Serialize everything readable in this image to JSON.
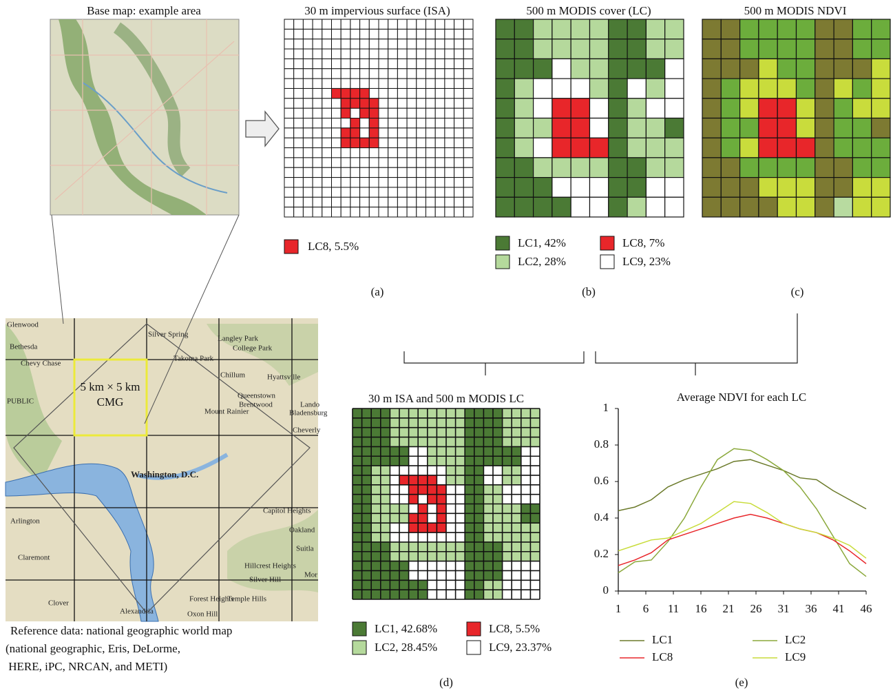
{
  "base_map": {
    "title": "Base map: example area"
  },
  "panel_a": {
    "title": "30 m impervious surface (ISA)",
    "cells": [
      [
        7,
        5
      ],
      [
        7,
        6
      ],
      [
        7,
        7
      ],
      [
        7,
        8
      ],
      [
        8,
        6
      ],
      [
        8,
        7
      ],
      [
        8,
        8
      ],
      [
        8,
        9
      ],
      [
        9,
        6
      ],
      [
        9,
        8
      ],
      [
        9,
        9
      ],
      [
        10,
        7
      ],
      [
        10,
        9
      ],
      [
        11,
        6
      ],
      [
        11,
        7
      ],
      [
        11,
        9
      ],
      [
        12,
        6
      ],
      [
        12,
        7
      ],
      [
        12,
        8
      ],
      [
        12,
        9
      ]
    ],
    "legend": [
      {
        "label": "LC8, 5.5%",
        "color": "#e8262a"
      }
    ]
  },
  "panel_b": {
    "title": "500 m MODIS cover (LC)",
    "grid": [
      [
        0,
        0,
        1,
        1,
        1,
        1,
        0,
        0,
        1,
        1
      ],
      [
        0,
        0,
        1,
        1,
        1,
        1,
        0,
        0,
        1,
        1
      ],
      [
        0,
        0,
        0,
        3,
        1,
        1,
        0,
        0,
        0,
        3
      ],
      [
        0,
        1,
        3,
        3,
        3,
        1,
        0,
        3,
        1,
        3
      ],
      [
        0,
        1,
        3,
        2,
        2,
        3,
        0,
        1,
        3,
        3
      ],
      [
        0,
        1,
        1,
        2,
        2,
        3,
        0,
        1,
        1,
        0
      ],
      [
        0,
        1,
        3,
        2,
        2,
        2,
        0,
        1,
        1,
        1
      ],
      [
        0,
        0,
        1,
        1,
        1,
        1,
        0,
        0,
        1,
        1
      ],
      [
        0,
        0,
        0,
        3,
        3,
        3,
        0,
        0,
        3,
        3
      ],
      [
        0,
        0,
        0,
        0,
        3,
        3,
        0,
        1,
        3,
        3
      ]
    ],
    "legend": [
      {
        "label": "LC1, 42%",
        "color": "#4b7a35"
      },
      {
        "label": "LC2, 28%",
        "color": "#b5d99c"
      },
      {
        "label": "LC8, 7%",
        "color": "#e8262a"
      },
      {
        "label": "LC9, 23%",
        "color": "#ffffff"
      }
    ]
  },
  "panel_c": {
    "title": "500 m MODIS NDVI",
    "palette": [
      "#7d7a32",
      "#6cad3c",
      "#c9dc3c",
      "#e8262a",
      "#b8dba0"
    ],
    "grid": [
      [
        0,
        0,
        1,
        1,
        1,
        1,
        0,
        0,
        1,
        1
      ],
      [
        0,
        0,
        1,
        1,
        1,
        1,
        0,
        0,
        1,
        1
      ],
      [
        0,
        0,
        0,
        2,
        1,
        1,
        0,
        0,
        0,
        2
      ],
      [
        0,
        1,
        2,
        2,
        2,
        1,
        0,
        2,
        1,
        2
      ],
      [
        0,
        1,
        2,
        3,
        3,
        2,
        0,
        1,
        2,
        2
      ],
      [
        0,
        1,
        1,
        3,
        3,
        2,
        0,
        1,
        1,
        0
      ],
      [
        0,
        1,
        2,
        3,
        3,
        3,
        0,
        1,
        1,
        1
      ],
      [
        0,
        0,
        1,
        1,
        1,
        1,
        0,
        0,
        1,
        1
      ],
      [
        0,
        0,
        0,
        2,
        2,
        2,
        0,
        0,
        2,
        2
      ],
      [
        0,
        0,
        0,
        0,
        2,
        2,
        0,
        4,
        2,
        2
      ]
    ]
  },
  "panel_d": {
    "title": "30 m ISA and 500 m MODIS LC",
    "legend": [
      {
        "label": "LC1, 42.68%",
        "color": "#4b7a35"
      },
      {
        "label": "LC2, 28.45%",
        "color": "#b5d99c"
      },
      {
        "label": "LC8, 5.5%",
        "color": "#e8262a"
      },
      {
        "label": "LC9, 23.37%",
        "color": "#ffffff"
      }
    ]
  },
  "panel_labels": [
    "(a)",
    "(b)",
    "(c)",
    "(d)",
    "(e)"
  ],
  "map": {
    "box_label": [
      "5 km × 5 km",
      "CMG"
    ],
    "place_names": [
      "Glenwood",
      "Bethesda",
      "Chevy Chase",
      "Silver Spring",
      "Langley Park",
      "College Park",
      "Takoma Park",
      "Chillum",
      "Hyattsville",
      "Queenstown",
      "Brentwood",
      "Mount Rainier",
      "Lando",
      "Bladensburg",
      "Cheverly",
      "Washington, D.C.",
      "Arlington",
      "Capitol Heights",
      "Claremont",
      "Oakland",
      "Suitla",
      "Hillcrest Heights",
      "Silver Hill",
      "Forest Heights",
      "Temple Hills",
      "Clover",
      "Alexandria",
      "Oxon Hill",
      "PUBLIC",
      "Mor"
    ],
    "caption": [
      "Reference data: national geographic world map",
      "(national geographic, Eris, DeLorme,",
      " HERE, iPC, NRCAN, and METI)"
    ]
  },
  "chart_data": {
    "type": "line",
    "title": "Average NDVI for each LC",
    "x": [
      1,
      4,
      7,
      10,
      13,
      16,
      19,
      22,
      25,
      28,
      31,
      34,
      37,
      40,
      43,
      46
    ],
    "series": [
      {
        "name": "LC1",
        "color": "#6b7a2a",
        "values": [
          0.44,
          0.46,
          0.5,
          0.57,
          0.61,
          0.64,
          0.67,
          0.71,
          0.72,
          0.69,
          0.66,
          0.62,
          0.61,
          0.55,
          0.5,
          0.45
        ]
      },
      {
        "name": "LC2",
        "color": "#8aa83a",
        "values": [
          0.1,
          0.16,
          0.17,
          0.27,
          0.4,
          0.57,
          0.72,
          0.78,
          0.77,
          0.72,
          0.66,
          0.57,
          0.45,
          0.3,
          0.15,
          0.08
        ]
      },
      {
        "name": "LC8",
        "color": "#e8262a",
        "values": [
          0.14,
          0.17,
          0.21,
          0.28,
          0.31,
          0.34,
          0.37,
          0.4,
          0.42,
          0.4,
          0.37,
          0.34,
          0.32,
          0.28,
          0.22,
          0.15
        ]
      },
      {
        "name": "LC9",
        "color": "#c8dc3a",
        "values": [
          0.22,
          0.25,
          0.28,
          0.29,
          0.33,
          0.37,
          0.43,
          0.49,
          0.48,
          0.43,
          0.37,
          0.34,
          0.32,
          0.29,
          0.25,
          0.18
        ]
      }
    ],
    "xlim": [
      1,
      46
    ],
    "xticks": [
      1,
      6,
      11,
      16,
      21,
      26,
      31,
      36,
      41,
      46
    ],
    "ylim": [
      0,
      1
    ],
    "yticks": [
      0,
      0.2,
      0.4,
      0.6,
      0.8,
      1
    ]
  }
}
